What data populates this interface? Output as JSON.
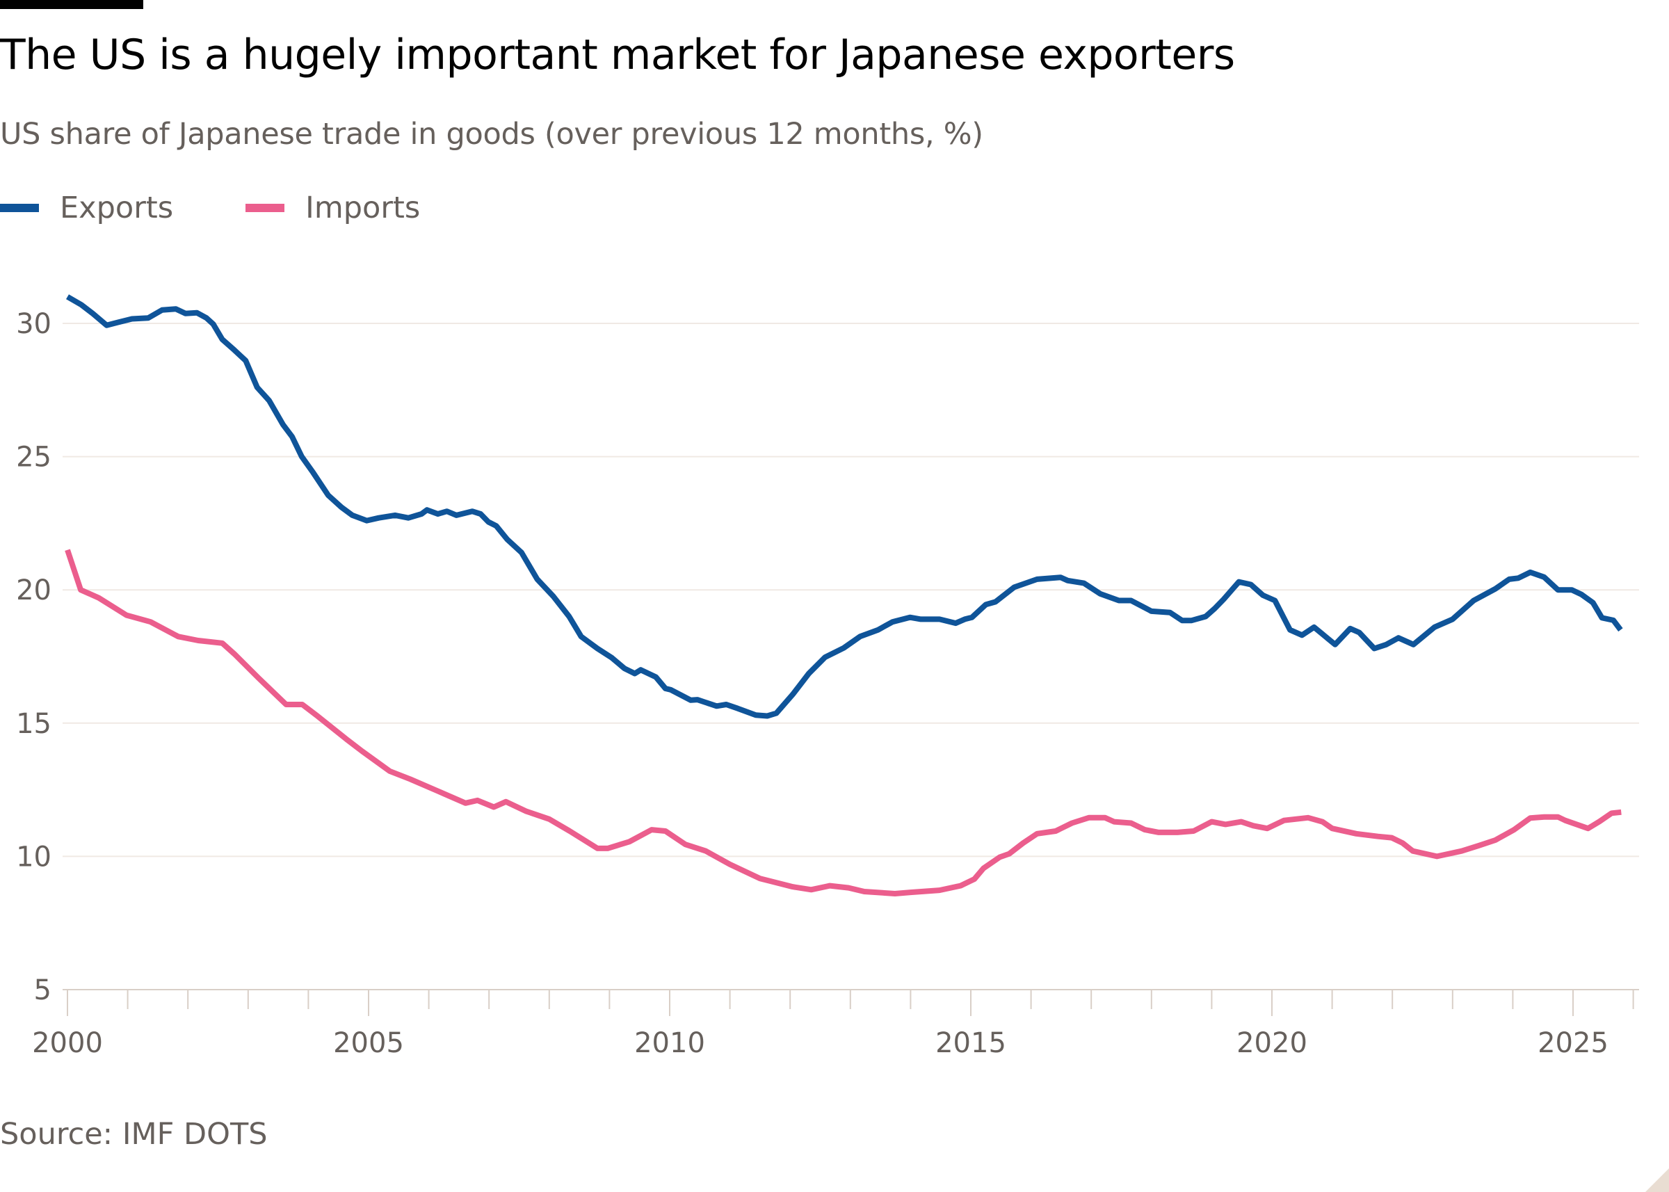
{
  "header": {
    "title": "The US is a hugely important market for Japanese exporters",
    "subtitle": "US share of Japanese trade in goods (over previous 12 months, %)"
  },
  "legend": [
    {
      "label": "Exports",
      "color": "#0f5499"
    },
    {
      "label": "Imports",
      "color": "#eb5e8d"
    }
  ],
  "footer": {
    "source": "Source: IMF DOTS"
  },
  "chart_data": {
    "type": "line",
    "title": "The US is a hugely important market for Japanese exporters",
    "subtitle": "US share of Japanese trade in goods (over previous 12 months, %)",
    "xlabel": "",
    "ylabel": "",
    "xlim": [
      2000,
      2026
    ],
    "ylim": [
      5,
      31
    ],
    "yticks": [
      5,
      10,
      15,
      20,
      25,
      30
    ],
    "xticks": [
      2000,
      2005,
      2010,
      2015,
      2020,
      2025
    ],
    "grid": "horizontal",
    "legend_position": "top-left",
    "series": [
      {
        "name": "Exports",
        "color": "#0f5499",
        "x": [
          2000.0,
          2000.23,
          2000.42,
          2000.65,
          2000.84,
          2001.07,
          2001.34,
          2001.57,
          2001.8,
          2001.96,
          2002.15,
          2002.31,
          2002.42,
          2002.57,
          2002.77,
          2002.96,
          2003.15,
          2003.35,
          2003.58,
          2003.73,
          2003.89,
          2004.08,
          2004.33,
          2004.55,
          2004.73,
          2004.97,
          2005.17,
          2005.44,
          2005.66,
          2005.88,
          2005.97,
          2006.15,
          2006.3,
          2006.46,
          2006.72,
          2006.86,
          2006.99,
          2007.12,
          2007.3,
          2007.54,
          2007.8,
          2008.07,
          2008.33,
          2008.53,
          2008.8,
          2009.04,
          2009.25,
          2009.42,
          2009.52,
          2009.77,
          2009.93,
          2010.02,
          2010.35,
          2010.46,
          2010.78,
          2010.94,
          2011.13,
          2011.43,
          2011.62,
          2011.77,
          2012.04,
          2012.31,
          2012.58,
          2012.89,
          2013.16,
          2013.46,
          2013.7,
          2013.99,
          2014.17,
          2014.48,
          2014.75,
          2014.9,
          2015.02,
          2015.25,
          2015.41,
          2015.72,
          2016.1,
          2016.49,
          2016.61,
          2016.88,
          2017.15,
          2017.46,
          2017.66,
          2018.0,
          2018.31,
          2018.51,
          2018.66,
          2018.9,
          2019.05,
          2019.2,
          2019.45,
          2019.65,
          2019.85,
          2020.05,
          2020.3,
          2020.5,
          2020.7,
          2021.05,
          2021.3,
          2021.45,
          2021.7,
          2021.9,
          2022.1,
          2022.35,
          2022.7,
          2023.0,
          2023.35,
          2023.71,
          2023.94,
          2024.09,
          2024.29,
          2024.52,
          2024.75,
          2024.98,
          2025.14,
          2025.33,
          2025.48,
          2025.67,
          2025.79
        ],
        "values": [
          31.0,
          30.7,
          30.37,
          29.93,
          30.04,
          30.17,
          30.2,
          30.5,
          30.54,
          30.37,
          30.4,
          30.2,
          29.97,
          29.4,
          29.0,
          28.6,
          27.6,
          27.1,
          26.2,
          25.75,
          25.0,
          24.4,
          23.55,
          23.1,
          22.8,
          22.6,
          22.7,
          22.8,
          22.7,
          22.85,
          23.0,
          22.85,
          22.95,
          22.8,
          22.95,
          22.85,
          22.55,
          22.4,
          21.9,
          21.4,
          20.4,
          19.75,
          19.0,
          18.25,
          17.8,
          17.45,
          17.05,
          16.86,
          17.0,
          16.73,
          16.3,
          16.25,
          15.86,
          15.88,
          15.64,
          15.7,
          15.55,
          15.3,
          15.27,
          15.37,
          16.07,
          16.86,
          17.47,
          17.82,
          18.25,
          18.5,
          18.8,
          18.97,
          18.9,
          18.9,
          18.75,
          18.9,
          18.97,
          19.45,
          19.55,
          20.1,
          20.4,
          20.47,
          20.35,
          20.25,
          19.85,
          19.6,
          19.6,
          19.2,
          19.15,
          18.85,
          18.85,
          19.0,
          19.3,
          19.65,
          20.3,
          20.2,
          19.8,
          19.6,
          18.5,
          18.3,
          18.6,
          17.95,
          18.55,
          18.4,
          17.8,
          17.95,
          18.2,
          17.95,
          18.6,
          18.9,
          19.6,
          20.04,
          20.4,
          20.44,
          20.66,
          20.48,
          20.0,
          20.0,
          19.83,
          19.52,
          18.95,
          18.86,
          18.5
        ]
      },
      {
        "name": "Imports",
        "color": "#eb5e8d",
        "x": [
          2000.0,
          2000.22,
          2000.52,
          2000.98,
          2001.38,
          2001.84,
          2002.17,
          2002.57,
          2002.77,
          2003.17,
          2003.63,
          2003.9,
          2004.16,
          2004.63,
          2004.89,
          2005.35,
          2005.69,
          2006.15,
          2006.61,
          2006.81,
          2007.08,
          2007.28,
          2007.61,
          2008.0,
          2008.34,
          2008.8,
          2008.97,
          2009.33,
          2009.7,
          2009.93,
          2010.26,
          2010.6,
          2011.0,
          2011.5,
          2012.04,
          2012.35,
          2012.66,
          2012.97,
          2013.23,
          2013.74,
          2014.0,
          2014.48,
          2014.83,
          2015.06,
          2015.21,
          2015.48,
          2015.64,
          2015.87,
          2016.1,
          2016.41,
          2016.68,
          2016.96,
          2017.23,
          2017.38,
          2017.66,
          2017.89,
          2018.12,
          2018.43,
          2018.7,
          2019.0,
          2019.23,
          2019.49,
          2019.69,
          2019.92,
          2020.2,
          2020.6,
          2020.84,
          2021.0,
          2021.4,
          2021.76,
          2021.99,
          2022.17,
          2022.34,
          2022.74,
          2023.15,
          2023.43,
          2023.71,
          2024.02,
          2024.29,
          2024.52,
          2024.75,
          2024.87,
          2025.25,
          2025.44,
          2025.64,
          2025.8
        ],
        "values": [
          21.5,
          20.0,
          19.7,
          19.05,
          18.8,
          18.25,
          18.1,
          18.0,
          17.6,
          16.7,
          15.7,
          15.7,
          15.25,
          14.4,
          13.95,
          13.2,
          12.9,
          12.45,
          12.0,
          12.1,
          11.85,
          12.05,
          11.7,
          11.4,
          10.95,
          10.3,
          10.3,
          10.55,
          11.0,
          10.95,
          10.45,
          10.2,
          9.7,
          9.17,
          8.86,
          8.75,
          8.9,
          8.82,
          8.68,
          8.6,
          8.65,
          8.73,
          8.9,
          9.15,
          9.55,
          9.97,
          10.1,
          10.5,
          10.85,
          10.95,
          11.25,
          11.45,
          11.45,
          11.3,
          11.25,
          11.0,
          10.9,
          10.9,
          10.95,
          11.3,
          11.2,
          11.3,
          11.15,
          11.05,
          11.35,
          11.45,
          11.3,
          11.05,
          10.85,
          10.75,
          10.7,
          10.5,
          10.2,
          10.0,
          10.2,
          10.4,
          10.61,
          11.0,
          11.44,
          11.48,
          11.48,
          11.35,
          11.05,
          11.31,
          11.62,
          11.66
        ]
      }
    ]
  }
}
